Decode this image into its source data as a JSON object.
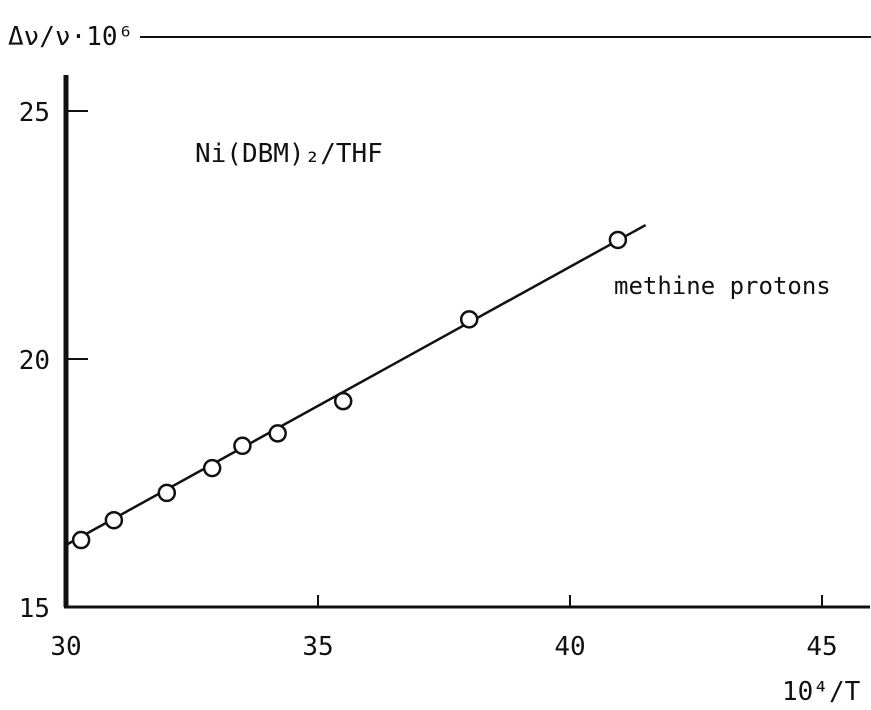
{
  "chart_data": {
    "type": "scatter",
    "ylabel": "Δν/ν·10⁶",
    "xlabel": "10⁴/T",
    "annotation": "Ni(DBM)₂/THF",
    "series": [
      {
        "name": "methine protons",
        "x": [
          30.3,
          30.95,
          32.0,
          32.9,
          33.5,
          34.2,
          35.5,
          38.0,
          40.95
        ],
        "y": [
          16.35,
          16.75,
          17.3,
          17.8,
          18.25,
          18.5,
          19.15,
          20.8,
          22.4
        ]
      }
    ],
    "fit_line": {
      "x": [
        30.0,
        41.5
      ],
      "y": [
        16.25,
        22.7
      ]
    },
    "xlim": [
      30,
      46
    ],
    "ylim": [
      15,
      26
    ],
    "xticks": [
      30,
      35,
      40,
      45
    ],
    "yticks": [
      15,
      20,
      25
    ],
    "xtick_labels": [
      "30",
      "35",
      "40",
      "45"
    ],
    "ytick_labels": [
      "15",
      "20",
      "25"
    ],
    "grid": false,
    "marker": "open-circle",
    "color": "#111111"
  }
}
